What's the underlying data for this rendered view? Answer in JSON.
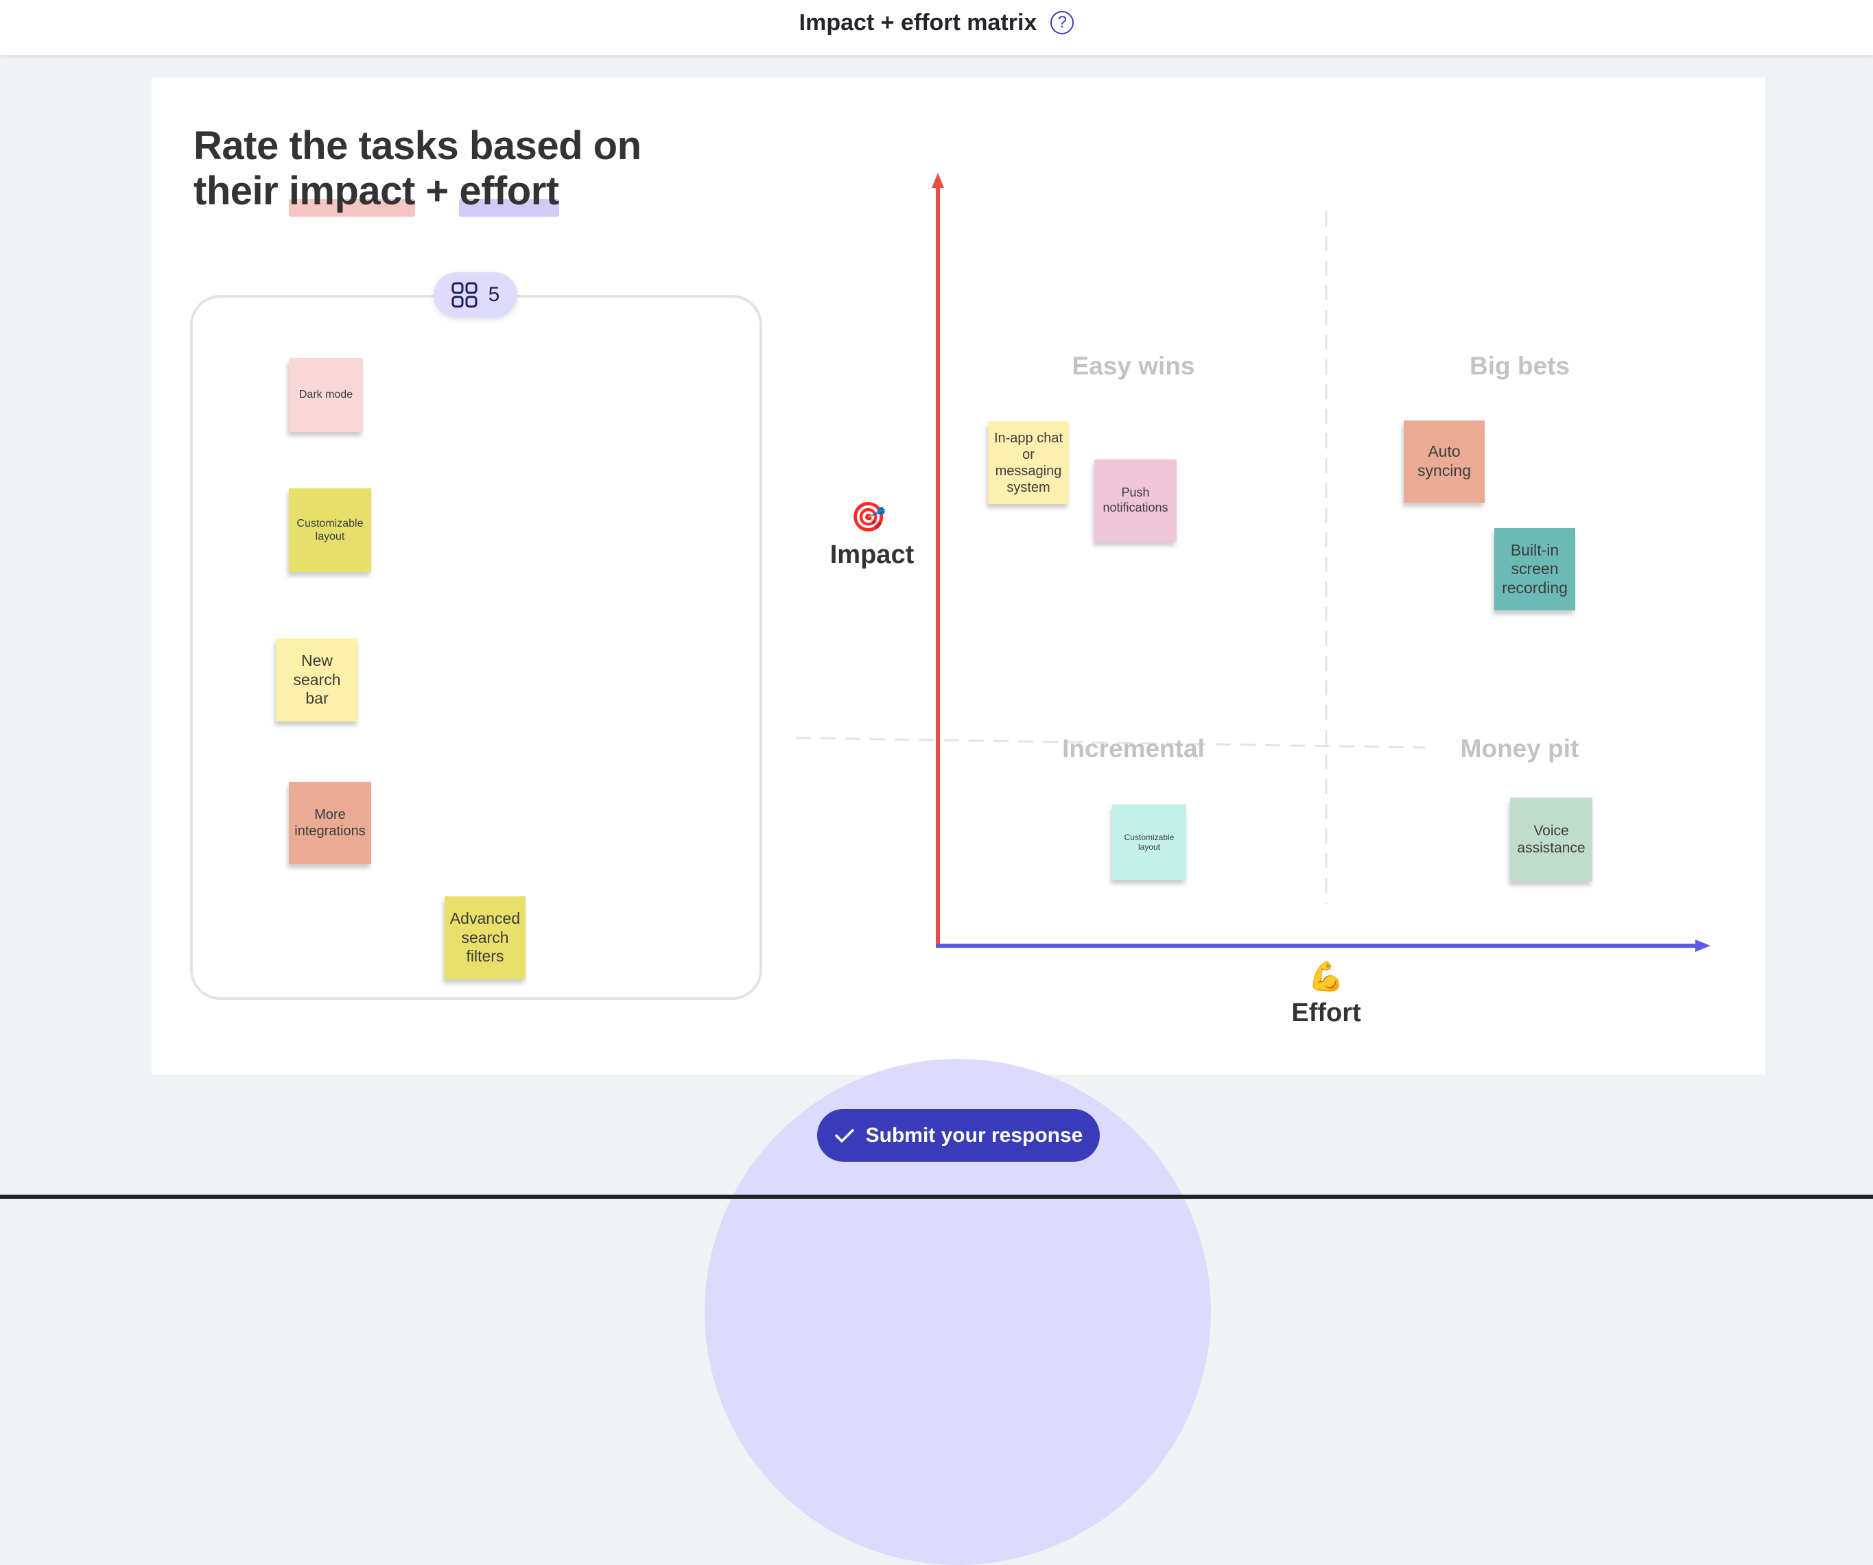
{
  "header": {
    "title": "Impact + effort matrix",
    "help_icon": "question-circle-icon"
  },
  "prompt": {
    "line1": "Rate the tasks based on",
    "line2_pre": "their ",
    "impact": "impact",
    "plus": " + ",
    "effort": "effort",
    "impact_highlight": "#f6c6c4",
    "effort_highlight": "#cfccf7"
  },
  "pool": {
    "count": "5",
    "icon": "grid-icon",
    "notes": [
      {
        "label": "Dark mode",
        "color": "#f8d7d8"
      },
      {
        "label": "Customizable layout",
        "color": "#e6e06a"
      },
      {
        "label": "New search bar",
        "color": "#fdf0a8"
      },
      {
        "label": "More integrations",
        "color": "#eaab94"
      },
      {
        "label": "Advanced search filters",
        "color": "#e8e06a"
      }
    ]
  },
  "matrix": {
    "y_axis": {
      "label": "Impact",
      "emoji": "🎯",
      "color": "#ec4c47"
    },
    "x_axis": {
      "label": "Effort",
      "emoji": "💪",
      "color": "#5b5be8"
    },
    "quadrants": {
      "top_left": "Easy wins",
      "top_right": "Big bets",
      "bottom_left": "Incremental",
      "bottom_right": "Money pit"
    },
    "notes": [
      {
        "label": "In-app chat or messaging system",
        "color": "#fcefaf",
        "quadrant": "Easy wins"
      },
      {
        "label": "Push notifications",
        "color": "#efc5d8",
        "quadrant": "Easy wins"
      },
      {
        "label": "Auto syncing",
        "color": "#eaab94",
        "quadrant": "Big bets"
      },
      {
        "label": "Built-in screen recording",
        "color": "#6bbab6",
        "quadrant": "Big bets"
      },
      {
        "label": "Customizable layout",
        "color": "#c4f0ea",
        "quadrant": "Incremental"
      },
      {
        "label": "Voice assistance",
        "color": "#c0dccc",
        "quadrant": "Money pit"
      }
    ]
  },
  "submit": {
    "label": "Submit your response",
    "icon": "check-icon"
  }
}
